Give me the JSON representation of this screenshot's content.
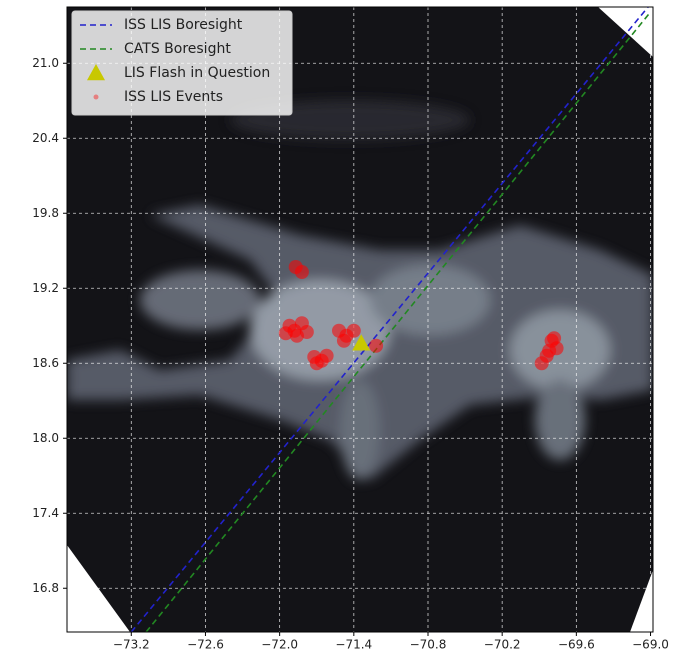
{
  "chart_data": {
    "type": "map",
    "xlim": [
      -73.72,
      -68.98
    ],
    "ylim": [
      16.45,
      21.45
    ],
    "xticks": [
      {
        "value": -73.2,
        "label": "−73.2"
      },
      {
        "value": -72.6,
        "label": "−72.6"
      },
      {
        "value": -72.0,
        "label": "−72.0"
      },
      {
        "value": -71.4,
        "label": "−71.4"
      },
      {
        "value": -70.8,
        "label": "−70.8"
      },
      {
        "value": -70.2,
        "label": "−70.2"
      },
      {
        "value": -69.6,
        "label": "−69.6"
      },
      {
        "value": -69.0,
        "label": "−69.0"
      }
    ],
    "yticks": [
      16.8,
      17.4,
      {
        "value": 18.0,
        "label": "18.0"
      },
      18.6,
      19.2,
      19.8,
      20.4,
      {
        "value": 21.0,
        "label": "21.0"
      }
    ],
    "grid": true,
    "legend": "upper left",
    "series": [
      {
        "name": "ISS LIS Boresight",
        "color": "#2222cc",
        "style": "dashed",
        "x": [
          -73.2,
          -69.02
        ],
        "values": [
          16.45,
          21.45
        ]
      },
      {
        "name": "CATS Boresight",
        "color": "#228822",
        "style": "dashed",
        "x": [
          -73.08,
          -69.0
        ],
        "values": [
          16.45,
          21.41
        ]
      },
      {
        "name": "LIS Flash in Question",
        "color": "#c8c800",
        "style": "triangle",
        "x": [
          -71.34
        ],
        "values": [
          18.76
        ]
      },
      {
        "name": "ISS LIS Events",
        "color": "#ff0000",
        "style": "dots",
        "x": [
          -71.92,
          -71.88,
          -71.82,
          -71.78,
          -71.86,
          -71.95,
          -71.72,
          -71.66,
          -71.62,
          -71.7,
          -71.52,
          -71.46,
          -71.4,
          -71.48,
          -71.22,
          -71.87,
          -71.82,
          -69.8,
          -69.76,
          -69.84,
          -69.88,
          -69.78,
          -69.82
        ],
        "values": [
          18.9,
          18.86,
          18.92,
          18.85,
          18.82,
          18.84,
          18.65,
          18.62,
          18.66,
          18.6,
          18.86,
          18.82,
          18.86,
          18.78,
          18.74,
          19.37,
          19.33,
          18.78,
          18.72,
          18.66,
          18.6,
          18.8,
          18.7
        ]
      }
    ]
  }
}
